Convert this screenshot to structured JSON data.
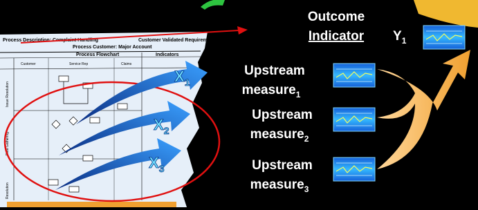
{
  "header": {
    "description": "Process Description: Complaint Handling",
    "customer": "Process Customer: Major Account",
    "requirements": "Customer Validated Requirements: Resolve issues"
  },
  "flowchart": {
    "title": "Process Flowchart",
    "indicators": "Indicators",
    "columns": [
      "Customer",
      "Service Rep",
      "Claims"
    ],
    "rows": [
      "Issue Resolution",
      "Data Gathering",
      "Resolution"
    ]
  },
  "inputs": [
    {
      "letter": "X",
      "sub": "1"
    },
    {
      "letter": "X",
      "sub": "2"
    },
    {
      "letter": "X",
      "sub": "3"
    }
  ],
  "outcome": {
    "line1": "Outcome",
    "line2": "Indicator",
    "letter": "Y",
    "sub": "1"
  },
  "measures": [
    {
      "line1": "Upstream",
      "line2": "measure",
      "sub": "1"
    },
    {
      "line1": "Upstream",
      "line2": "measure",
      "sub": "2"
    },
    {
      "line1": "Upstream",
      "line2": "measure",
      "sub": "3"
    }
  ]
}
